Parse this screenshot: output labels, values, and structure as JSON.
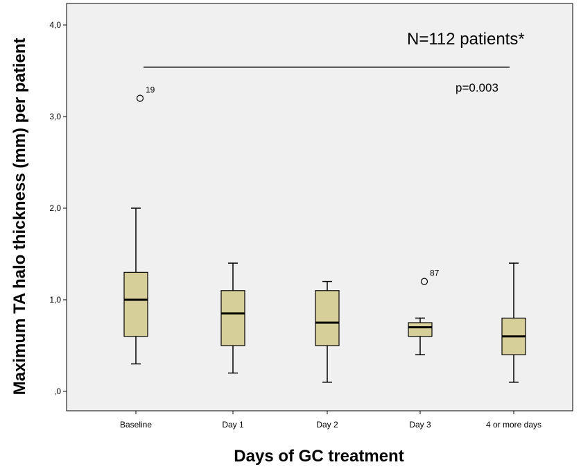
{
  "chart_data": {
    "type": "box",
    "xlabel": "Days of GC treatment",
    "ylabel": "Maximum TA halo thickness (mm) per patient",
    "ylim": [
      -0.2,
      4.2
    ],
    "yticks": [
      {
        "value": 0,
        "label": ",0"
      },
      {
        "value": 1,
        "label": "1,0"
      },
      {
        "value": 2,
        "label": "2,0"
      },
      {
        "value": 3,
        "label": "3,0"
      },
      {
        "value": 4,
        "label": "4,0"
      }
    ],
    "categories": [
      "Baseline",
      "Day 1",
      "Day 2",
      "Day 3",
      "4 or more days"
    ],
    "boxes": [
      {
        "category": "Baseline",
        "min": 0.3,
        "q1": 0.6,
        "median": 1.0,
        "q3": 1.3,
        "max": 2.0,
        "outliers": [
          {
            "value": 3.2,
            "label": "19"
          }
        ]
      },
      {
        "category": "Day 1",
        "min": 0.2,
        "q1": 0.5,
        "median": 0.85,
        "q3": 1.1,
        "max": 1.4,
        "outliers": []
      },
      {
        "category": "Day 2",
        "min": 0.1,
        "q1": 0.5,
        "median": 0.75,
        "q3": 1.1,
        "max": 1.2,
        "outliers": []
      },
      {
        "category": "Day 3",
        "min": 0.4,
        "q1": 0.6,
        "median": 0.7,
        "q3": 0.75,
        "max": 0.8,
        "outliers": [
          {
            "value": 1.2,
            "label": "87"
          }
        ]
      },
      {
        "category": "4 or more days",
        "min": 0.1,
        "q1": 0.4,
        "median": 0.6,
        "q3": 0.8,
        "max": 1.4,
        "outliers": []
      }
    ],
    "annotations": {
      "n_text": "N=112 patients*",
      "p_text": "p=0.003",
      "bracket_value": 3.54
    },
    "colors": {
      "box_fill": "#d6cf9a",
      "plot_background": "#f0f0f0",
      "stroke": "#000000"
    },
    "grid": false,
    "legend": "none"
  }
}
